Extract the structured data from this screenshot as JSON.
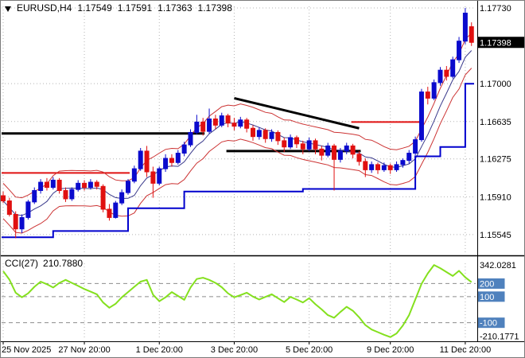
{
  "header": {
    "symbol": "EURUSD,H4",
    "open": "1.17549",
    "high": "1.17591",
    "low": "1.17363",
    "close": "1.17398"
  },
  "indicator": {
    "label": "CCI(27)",
    "value": "210.7880"
  },
  "colors": {
    "background": "#ffffff",
    "bull": "#0a0acd",
    "bear": "#e01010",
    "grid": "#b4b4b4",
    "cci_line": "#84e01e",
    "cci_level_line": "#8c8c8c",
    "step_line": "#0000cd",
    "band": "#cc3333",
    "mid_line": "#3a3a8c",
    "object_black": "#000000",
    "object_red": "#e01010",
    "price_tag_bg": "#000000",
    "price_tag_fg": "#ffffff",
    "level_tag_bg": "#4f81bd",
    "level_tag_fg": "#ffffff",
    "axis_text": "#000000",
    "frame": "#000000",
    "outer_border": "#7a7a7a"
  },
  "price_axis": {
    "grid_labels": [
      "1.17730",
      "1.17000",
      "1.16635",
      "1.16275",
      "1.15910",
      "1.15545"
    ],
    "current_price": "1.17398"
  },
  "cci_axis": {
    "max_label": "342.0281",
    "min_label": "-210.1771",
    "level_tags": [
      "200",
      "100",
      "-100"
    ]
  },
  "time_axis": {
    "labels": [
      {
        "text": "25 Nov 2025",
        "i": 0,
        "align": "left"
      },
      {
        "text": "27 Nov 20:00",
        "i": 13,
        "align": "middle"
      },
      {
        "text": "1 Dec 20:00",
        "i": 25,
        "align": "middle"
      },
      {
        "text": "3 Dec 20:00",
        "i": 37,
        "align": "middle"
      },
      {
        "text": "5 Dec 20:00",
        "i": 49,
        "align": "middle"
      },
      {
        "text": "9 Dec 20:00",
        "i": 62,
        "align": "middle"
      },
      {
        "text": "11 Dec 20:00",
        "i": 74,
        "align": "middle"
      }
    ]
  },
  "chart_data": [
    {
      "type": "candlestick",
      "title": "EURUSD,H4",
      "symbol": "EURUSD",
      "timeframe": "H4",
      "ylim": [
        1.15368,
        1.17745
      ],
      "ohlc_last": {
        "open": 1.17549,
        "high": 1.17591,
        "low": 1.17363,
        "close": 1.17398
      },
      "candles": [
        [
          1.1592,
          1.1596,
          1.1585,
          1.1587
        ],
        [
          1.1587,
          1.159,
          1.1572,
          1.1574
        ],
        [
          1.1574,
          1.1577,
          1.1551,
          1.156
        ],
        [
          1.156,
          1.1574,
          1.1556,
          1.1571
        ],
        [
          1.1571,
          1.1588,
          1.1569,
          1.1586
        ],
        [
          1.1586,
          1.16,
          1.1584,
          1.1597
        ],
        [
          1.1597,
          1.1608,
          1.1594,
          1.1605
        ],
        [
          1.1605,
          1.1609,
          1.1597,
          1.16
        ],
        [
          1.16,
          1.161,
          1.1598,
          1.1607
        ],
        [
          1.1607,
          1.1609,
          1.1594,
          1.1597
        ],
        [
          1.1597,
          1.16,
          1.1586,
          1.1589
        ],
        [
          1.1589,
          1.16,
          1.1587,
          1.1598
        ],
        [
          1.1598,
          1.1607,
          1.1596,
          1.1604
        ],
        [
          1.1604,
          1.1607,
          1.1597,
          1.16
        ],
        [
          1.16,
          1.1608,
          1.1598,
          1.1605
        ],
        [
          1.1605,
          1.1607,
          1.1598,
          1.1601
        ],
        [
          1.1601,
          1.1603,
          1.1576,
          1.1579
        ],
        [
          1.1579,
          1.1584,
          1.1568,
          1.1571
        ],
        [
          1.1571,
          1.1587,
          1.157,
          1.1585
        ],
        [
          1.1585,
          1.1598,
          1.1583,
          1.1595
        ],
        [
          1.1595,
          1.1608,
          1.1593,
          1.1606
        ],
        [
          1.1606,
          1.1621,
          1.1604,
          1.1618
        ],
        [
          1.1618,
          1.1638,
          1.1616,
          1.1635
        ],
        [
          1.1635,
          1.164,
          1.161,
          1.1615
        ],
        [
          1.1615,
          1.162,
          1.159,
          1.1604
        ],
        [
          1.1604,
          1.162,
          1.1602,
          1.1618
        ],
        [
          1.1618,
          1.1632,
          1.1615,
          1.1628
        ],
        [
          1.1628,
          1.1632,
          1.162,
          1.1624
        ],
        [
          1.1624,
          1.1636,
          1.1622,
          1.1633
        ],
        [
          1.1633,
          1.1644,
          1.163,
          1.1641
        ],
        [
          1.1641,
          1.1656,
          1.1639,
          1.1653
        ],
        [
          1.1653,
          1.167,
          1.1651,
          1.1663
        ],
        [
          1.1663,
          1.1667,
          1.165,
          1.1654
        ],
        [
          1.1654,
          1.1676,
          1.1652,
          1.1666
        ],
        [
          1.1666,
          1.167,
          1.1656,
          1.166
        ],
        [
          1.166,
          1.1672,
          1.1658,
          1.1669
        ],
        [
          1.1669,
          1.1671,
          1.1658,
          1.1662
        ],
        [
          1.1662,
          1.1667,
          1.1655,
          1.1659
        ],
        [
          1.1659,
          1.1668,
          1.1657,
          1.1665
        ],
        [
          1.1665,
          1.1667,
          1.1653,
          1.1657
        ],
        [
          1.1657,
          1.166,
          1.1645,
          1.1649
        ],
        [
          1.1649,
          1.1658,
          1.1646,
          1.1655
        ],
        [
          1.1655,
          1.1657,
          1.1643,
          1.1647
        ],
        [
          1.1647,
          1.1656,
          1.1644,
          1.1653
        ],
        [
          1.1653,
          1.1655,
          1.1641,
          1.1645
        ],
        [
          1.1645,
          1.1648,
          1.1634,
          1.1639
        ],
        [
          1.1639,
          1.1651,
          1.1637,
          1.1648
        ],
        [
          1.1648,
          1.165,
          1.1638,
          1.1642
        ],
        [
          1.1642,
          1.1645,
          1.1632,
          1.1637
        ],
        [
          1.1637,
          1.1648,
          1.1635,
          1.1645
        ],
        [
          1.1645,
          1.1647,
          1.1632,
          1.1637
        ],
        [
          1.1637,
          1.164,
          1.1626,
          1.1631
        ],
        [
          1.1631,
          1.1643,
          1.1629,
          1.164
        ],
        [
          1.164,
          1.1642,
          1.1597,
          1.1627
        ],
        [
          1.1627,
          1.1638,
          1.1624,
          1.1635
        ],
        [
          1.1635,
          1.1643,
          1.1632,
          1.164
        ],
        [
          1.164,
          1.1642,
          1.1628,
          1.1632
        ],
        [
          1.1632,
          1.1635,
          1.1621,
          1.1625
        ],
        [
          1.1625,
          1.1628,
          1.161,
          1.1617
        ],
        [
          1.1617,
          1.1625,
          1.1614,
          1.1622
        ],
        [
          1.1622,
          1.1624,
          1.1613,
          1.1617
        ],
        [
          1.1617,
          1.1624,
          1.1615,
          1.1621
        ],
        [
          1.1621,
          1.1623,
          1.1613,
          1.1617
        ],
        [
          1.1617,
          1.1625,
          1.1615,
          1.1622
        ],
        [
          1.1622,
          1.1628,
          1.1619,
          1.1626
        ],
        [
          1.1626,
          1.1636,
          1.1623,
          1.1633
        ],
        [
          1.1633,
          1.1649,
          1.1631,
          1.1646
        ],
        [
          1.1646,
          1.1695,
          1.1644,
          1.1692
        ],
        [
          1.1692,
          1.1697,
          1.168,
          1.1686
        ],
        [
          1.1686,
          1.1704,
          1.1684,
          1.1701
        ],
        [
          1.1701,
          1.1716,
          1.1698,
          1.1713
        ],
        [
          1.1713,
          1.1717,
          1.1703,
          1.1707
        ],
        [
          1.1707,
          1.1726,
          1.1705,
          1.1723
        ],
        [
          1.1723,
          1.1745,
          1.172,
          1.1741
        ],
        [
          1.1741,
          1.1773,
          1.1738,
          1.1768
        ],
        [
          1.17549,
          1.17591,
          1.17363,
          1.17398
        ]
      ],
      "overlays": {
        "bands": {
          "period": 6,
          "offset": 0.0017
        },
        "step_line": {
          "points": [
            {
              "i": 0,
              "p": 1.1552
            },
            {
              "i": 8,
              "p": 1.1558
            },
            {
              "i": 20,
              "p": 1.158
            },
            {
              "i": 29,
              "p": 1.1596
            },
            {
              "i": 48,
              "p": 1.15985
            },
            {
              "i": 66,
              "p": 1.163
            },
            {
              "i": 70,
              "p": 1.1639
            },
            {
              "i": 74,
              "p": 1.17
            }
          ]
        }
      },
      "objects": [
        {
          "type": "hseg",
          "name": "black-line-left",
          "i1": 0,
          "i2": 32,
          "price": 1.1652,
          "color": "object_black",
          "width": 3
        },
        {
          "type": "hseg",
          "name": "black-line-mid",
          "i1": 36,
          "i2": 57,
          "price": 1.1635,
          "color": "object_black",
          "width": 3
        },
        {
          "type": "tline",
          "name": "black-trendline",
          "i1": 37,
          "p1": 1.1686,
          "i2": 57,
          "p2": 1.1657,
          "color": "object_black",
          "width": 3
        },
        {
          "type": "hseg",
          "name": "red-line-left",
          "i1": 0,
          "i2": 20,
          "price": 1.1614,
          "color": "object_red",
          "width": 2
        },
        {
          "type": "hseg",
          "name": "red-line-right",
          "i1": 56,
          "i2": 67,
          "price": 1.1663,
          "color": "object_red",
          "width": 2
        }
      ]
    },
    {
      "type": "line",
      "title": "CCI(27)",
      "ylim": [
        -230,
        355
      ],
      "levels": [
        200,
        100,
        -100
      ],
      "max_value": 342.0281,
      "min_value": -210.1771,
      "current_value": 210.788,
      "values": [
        295,
        230,
        130,
        95,
        125,
        175,
        215,
        195,
        170,
        205,
        228,
        205,
        182,
        158,
        138,
        118,
        55,
        15,
        45,
        95,
        135,
        175,
        215,
        228,
        115,
        65,
        95,
        135,
        105,
        75,
        170,
        235,
        245,
        228,
        205,
        172,
        125,
        95,
        112,
        130,
        100,
        78,
        98,
        118,
        88,
        58,
        98,
        78,
        55,
        88,
        42,
        2,
        -42,
        -62,
        -18,
        22,
        -8,
        -58,
        -118,
        -152,
        -172,
        -192,
        -210.1771,
        -182,
        -122,
        -42,
        78,
        198,
        278,
        342.0281,
        318,
        288,
        258,
        298,
        248,
        210.788
      ]
    }
  ]
}
